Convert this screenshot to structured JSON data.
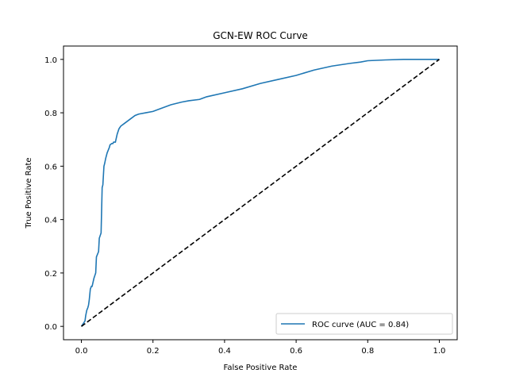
{
  "chart_data": {
    "type": "line",
    "title": "GCN-EW ROC Curve",
    "xlabel": "False Positive Rate",
    "ylabel": "True Positive Rate",
    "xlim": [
      -0.05,
      1.05
    ],
    "ylim": [
      -0.05,
      1.05
    ],
    "x_ticks": [
      0.0,
      0.2,
      0.4,
      0.6,
      0.8,
      1.0
    ],
    "y_ticks": [
      0.0,
      0.2,
      0.4,
      0.6,
      0.8,
      1.0
    ],
    "x_tick_labels": [
      "0.0",
      "0.2",
      "0.4",
      "0.6",
      "0.8",
      "1.0"
    ],
    "y_tick_labels": [
      "0.0",
      "0.2",
      "0.4",
      "0.6",
      "0.8",
      "1.0"
    ],
    "grid": false,
    "legend": {
      "position": "lower right",
      "entries": [
        "ROC curve (AUC = 0.84)"
      ]
    },
    "series": [
      {
        "name": "ROC curve (AUC = 0.84)",
        "color": "#1f77b4",
        "style": "solid",
        "x": [
          0.0,
          0.005,
          0.01,
          0.012,
          0.015,
          0.018,
          0.02,
          0.022,
          0.025,
          0.028,
          0.03,
          0.035,
          0.04,
          0.042,
          0.045,
          0.048,
          0.05,
          0.055,
          0.058,
          0.06,
          0.063,
          0.065,
          0.068,
          0.07,
          0.072,
          0.075,
          0.078,
          0.08,
          0.085,
          0.088,
          0.09,
          0.095,
          0.1,
          0.105,
          0.11,
          0.12,
          0.13,
          0.14,
          0.15,
          0.16,
          0.18,
          0.2,
          0.22,
          0.25,
          0.28,
          0.3,
          0.33,
          0.35,
          0.4,
          0.45,
          0.5,
          0.55,
          0.6,
          0.65,
          0.7,
          0.75,
          0.78,
          0.8,
          0.85,
          0.9,
          0.95,
          1.0
        ],
        "y": [
          0.0,
          0.01,
          0.02,
          0.04,
          0.06,
          0.07,
          0.08,
          0.1,
          0.14,
          0.15,
          0.15,
          0.18,
          0.2,
          0.26,
          0.27,
          0.28,
          0.33,
          0.35,
          0.52,
          0.53,
          0.6,
          0.61,
          0.63,
          0.64,
          0.65,
          0.66,
          0.67,
          0.68,
          0.685,
          0.685,
          0.69,
          0.69,
          0.72,
          0.74,
          0.75,
          0.76,
          0.77,
          0.78,
          0.79,
          0.795,
          0.8,
          0.805,
          0.815,
          0.83,
          0.84,
          0.845,
          0.85,
          0.86,
          0.875,
          0.89,
          0.91,
          0.925,
          0.94,
          0.96,
          0.975,
          0.985,
          0.99,
          0.995,
          0.998,
          1.0,
          1.0,
          1.0
        ]
      },
      {
        "name": "",
        "color": "#000000",
        "style": "dashed",
        "x": [
          0.0,
          1.0
        ],
        "y": [
          0.0,
          1.0
        ]
      }
    ]
  }
}
